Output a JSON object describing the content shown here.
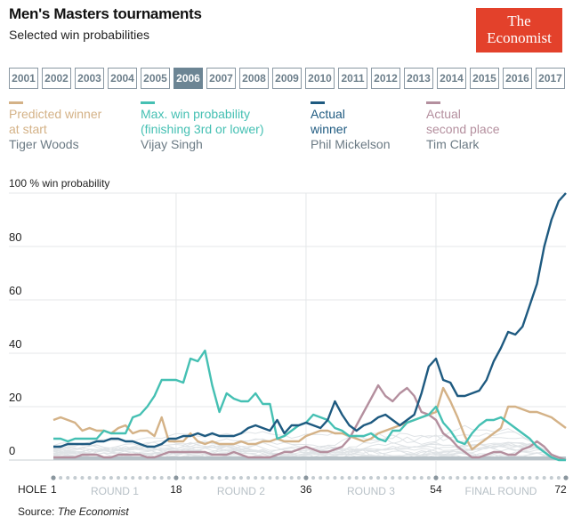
{
  "header": {
    "title": "Men's Masters tournaments",
    "subtitle": "Selected win probabilities",
    "logo_line1": "The",
    "logo_line2": "Economist"
  },
  "years": [
    "2001",
    "2002",
    "2003",
    "2004",
    "2005",
    "2006",
    "2007",
    "2008",
    "2009",
    "2010",
    "2011",
    "2012",
    "2013",
    "2014",
    "2015",
    "2016",
    "2017"
  ],
  "selected_year": "2006",
  "legend": [
    {
      "label1": "Predicted winner",
      "label2": "at start",
      "player": "Tiger Woods",
      "color": "#d4b287"
    },
    {
      "label1": "Max. win probability",
      "label2": "(finishing 3rd or lower)",
      "player": "Vijay Singh",
      "color": "#45c0b3"
    },
    {
      "label1": "Actual",
      "label2": "winner",
      "player": "Phil Mickelson",
      "color": "#1e5a80"
    },
    {
      "label1": "Actual",
      "label2": "second place",
      "player": "Tim Clark",
      "color": "#b48f9e"
    }
  ],
  "source": {
    "prefix": "Source: ",
    "name": "The Economist"
  },
  "chart_data": {
    "type": "line",
    "title": "Men's Masters tournaments",
    "ylabel": "100 % win probability",
    "xlabel": "HOLE",
    "ylim": [
      0,
      100
    ],
    "xlim": [
      1,
      72
    ],
    "y_ticks": [
      0,
      20,
      40,
      60,
      80
    ],
    "y_top_label": "100 % win probability",
    "x_ticks": [
      1,
      18,
      36,
      54,
      72
    ],
    "rounds": [
      "ROUND 1",
      "ROUND 2",
      "ROUND 3",
      "FINAL ROUND"
    ],
    "grid": true,
    "series": [
      {
        "name": "Tiger Woods",
        "role": "Predicted winner at start",
        "color": "#d4b287",
        "values": [
          15,
          16,
          15,
          14,
          11,
          12,
          11,
          11,
          10,
          12,
          13,
          10,
          11,
          11,
          9,
          16,
          7,
          7,
          7,
          10,
          7,
          6,
          7,
          6,
          6,
          6,
          7,
          6,
          6,
          7,
          7,
          8,
          7,
          7,
          7,
          9,
          10,
          11,
          11,
          10,
          10,
          9,
          8,
          7,
          8,
          10,
          11,
          12,
          13,
          14,
          15,
          16,
          17,
          18,
          27,
          22,
          16,
          9,
          4,
          6,
          8,
          10,
          12,
          20,
          20,
          19,
          18,
          18,
          17,
          16,
          14,
          12
        ],
        "values_note": "approximate"
      },
      {
        "name": "Vijay Singh",
        "role": "Max. win probability (finishing 3rd or lower)",
        "color": "#45c0b3",
        "values": [
          8,
          8,
          7,
          8,
          8,
          8,
          8,
          11,
          10,
          10,
          10,
          16,
          17,
          20,
          24,
          30,
          30,
          30,
          29,
          38,
          37,
          41,
          28,
          18,
          25,
          23,
          22,
          22,
          25,
          21,
          21,
          8,
          9,
          11,
          13,
          14,
          17,
          16,
          15,
          12,
          11,
          9,
          9,
          9,
          10,
          8,
          7,
          11,
          11,
          14,
          15,
          16,
          17,
          20,
          14,
          11,
          7,
          6,
          10,
          13,
          15,
          15,
          16,
          14,
          12,
          10,
          8,
          5,
          3,
          1,
          0,
          0
        ],
        "values_note": "approximate"
      },
      {
        "name": "Phil Mickelson",
        "role": "Actual winner",
        "color": "#1e5a80",
        "values": [
          5,
          5,
          6,
          6,
          6,
          6,
          7,
          7,
          8,
          8,
          7,
          7,
          6,
          5,
          5,
          6,
          8,
          8,
          9,
          9,
          10,
          9,
          10,
          9,
          9,
          9,
          10,
          12,
          13,
          12,
          11,
          15,
          10,
          13,
          13,
          14,
          13,
          12,
          15,
          22,
          17,
          13,
          11,
          13,
          14,
          16,
          17,
          15,
          13,
          15,
          17,
          25,
          35,
          38,
          30,
          29,
          24,
          24,
          25,
          26,
          30,
          37,
          42,
          48,
          47,
          50,
          58,
          66,
          80,
          90,
          97,
          100
        ],
        "values_note": "approximate"
      },
      {
        "name": "Tim Clark",
        "role": "Actual second place",
        "color": "#b48f9e",
        "values": [
          1,
          1,
          1,
          1,
          2,
          2,
          2,
          1,
          1,
          2,
          2,
          2,
          2,
          1,
          1,
          2,
          3,
          3,
          3,
          3,
          3,
          3,
          2,
          2,
          2,
          3,
          2,
          1,
          1,
          1,
          1,
          2,
          3,
          3,
          4,
          5,
          4,
          3,
          3,
          4,
          5,
          8,
          13,
          18,
          23,
          28,
          24,
          22,
          25,
          27,
          24,
          18,
          17,
          15,
          10,
          8,
          5,
          3,
          1,
          1,
          2,
          3,
          3,
          2,
          2,
          4,
          5,
          7,
          5,
          2,
          1,
          0
        ],
        "values_note": "approximate"
      }
    ],
    "background_series_note": "Many unlabeled light-grey lines show other players' probabilities"
  }
}
